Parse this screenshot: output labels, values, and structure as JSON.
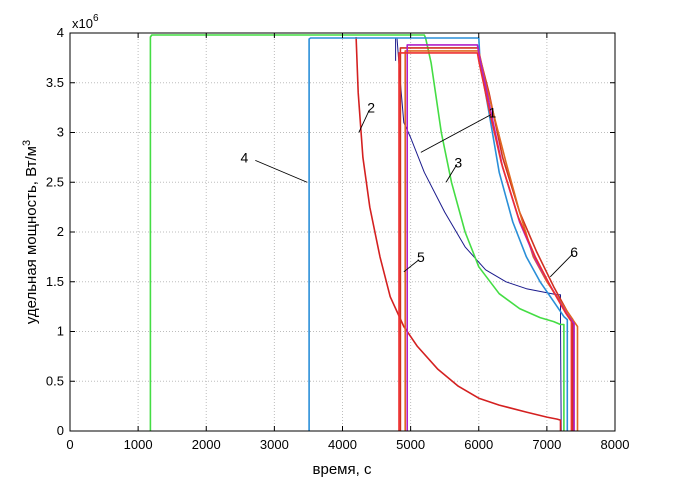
{
  "chart_data": {
    "type": "line",
    "title": "",
    "xlabel": "время, с",
    "ylabel": "удельная мощность, Вт/м",
    "ylabel_sup": "3",
    "exponent_base": "x10",
    "exponent_power": "6",
    "xlim": [
      0,
      8000
    ],
    "ylim": [
      0,
      4
    ],
    "xticks": [
      0,
      1000,
      2000,
      3000,
      4000,
      5000,
      6000,
      7000,
      8000
    ],
    "yticks": [
      0,
      0.5,
      1,
      1.5,
      2,
      2.5,
      3,
      3.5,
      4
    ],
    "ytick_labels": [
      "0",
      "0.5",
      "1",
      "1.5",
      "2",
      "2.5",
      "3",
      "3.5",
      "4"
    ],
    "grid": true,
    "legend": "none",
    "series": [
      {
        "label": "1",
        "color": "#1a1a8c",
        "x": [
          4780,
          4780,
          4800,
          4850,
          4900,
          5000,
          5200,
          5500,
          5800,
          6100,
          6400,
          6700,
          7000,
          7150,
          7200,
          7200,
          7210
        ],
        "y": [
          3.72,
          3.95,
          3.95,
          3.5,
          3.1,
          2.95,
          2.6,
          2.2,
          1.85,
          1.62,
          1.5,
          1.43,
          1.39,
          1.37,
          1.37,
          1.1,
          0
        ]
      },
      {
        "label": "2",
        "color": "#d42020",
        "x": [
          4200,
          4230,
          4300,
          4400,
          4550,
          4700,
          4900,
          5100,
          5400,
          5700,
          6000,
          6300,
          6700,
          7000,
          7150,
          7200,
          7200
        ],
        "y": [
          3.96,
          3.4,
          2.75,
          2.25,
          1.75,
          1.35,
          1.05,
          0.85,
          0.62,
          0.45,
          0.33,
          0.26,
          0.19,
          0.14,
          0.12,
          0.11,
          0
        ]
      },
      {
        "label": "3",
        "color": "#44dd44",
        "x": [
          1180,
          1180,
          1200,
          5200,
          5220,
          5300,
          5450,
          5600,
          5800,
          6000,
          6300,
          6600,
          6900,
          7100,
          7200,
          7250,
          7250
        ],
        "y": [
          0,
          3.96,
          3.98,
          3.98,
          3.95,
          3.7,
          3.0,
          2.5,
          2.0,
          1.65,
          1.38,
          1.23,
          1.14,
          1.1,
          1.07,
          1.07,
          0
        ]
      },
      {
        "label": "4",
        "color": "#2a8fd8",
        "x": [
          3510,
          3510,
          3530,
          6000,
          6020,
          6150,
          6300,
          6500,
          6700,
          6900,
          7100,
          7250,
          7300,
          7300
        ],
        "y": [
          0,
          3.94,
          3.95,
          3.95,
          3.7,
          3.2,
          2.6,
          2.1,
          1.75,
          1.5,
          1.3,
          1.15,
          1.12,
          0
        ]
      },
      {
        "label": "5",
        "color": "#d03020",
        "x": [
          4850,
          4850,
          4870,
          5990,
          6000,
          6150,
          6350,
          6600,
          6850,
          7100,
          7300,
          7380,
          7380
        ],
        "y": [
          0,
          3.85,
          3.85,
          3.85,
          3.8,
          3.4,
          2.75,
          2.2,
          1.8,
          1.45,
          1.2,
          1.12,
          0
        ]
      },
      {
        "label": "6",
        "color": "#e06820",
        "x": [
          4920,
          4920,
          4940,
          6000,
          6100,
          6250,
          6400,
          6600,
          6800,
          7000,
          7200,
          7400,
          7450,
          7450
        ],
        "y": [
          0,
          3.82,
          3.82,
          3.82,
          3.5,
          3.1,
          2.7,
          2.2,
          1.75,
          1.5,
          1.3,
          1.1,
          1.05,
          0
        ]
      },
      {
        "label": "",
        "color": "#b020c8",
        "x": [
          4950,
          4950,
          4970,
          5980,
          6000,
          6150,
          6350,
          6600,
          6850,
          7100,
          7300,
          7400,
          7400
        ],
        "y": [
          0,
          3.88,
          3.88,
          3.88,
          3.8,
          3.3,
          2.65,
          2.1,
          1.7,
          1.4,
          1.17,
          1.08,
          0
        ]
      },
      {
        "label": "",
        "color": "#ee3030",
        "x": [
          4830,
          4830,
          4850,
          5980,
          6000,
          6130,
          6330,
          6580,
          6830,
          7080,
          7280,
          7360,
          7360
        ],
        "y": [
          0,
          3.8,
          3.8,
          3.8,
          3.72,
          3.3,
          2.7,
          2.15,
          1.75,
          1.42,
          1.18,
          1.1,
          0
        ]
      }
    ],
    "annotations": [
      {
        "text": "1",
        "x": 6200,
        "y": 3.2
      },
      {
        "text": "2",
        "x": 4420,
        "y": 3.25
      },
      {
        "text": "3",
        "x": 5700,
        "y": 2.7
      },
      {
        "text": "4",
        "x": 2560,
        "y": 2.75
      },
      {
        "text": "5",
        "x": 5150,
        "y": 1.75
      },
      {
        "text": "6",
        "x": 7400,
        "y": 1.8
      }
    ]
  }
}
